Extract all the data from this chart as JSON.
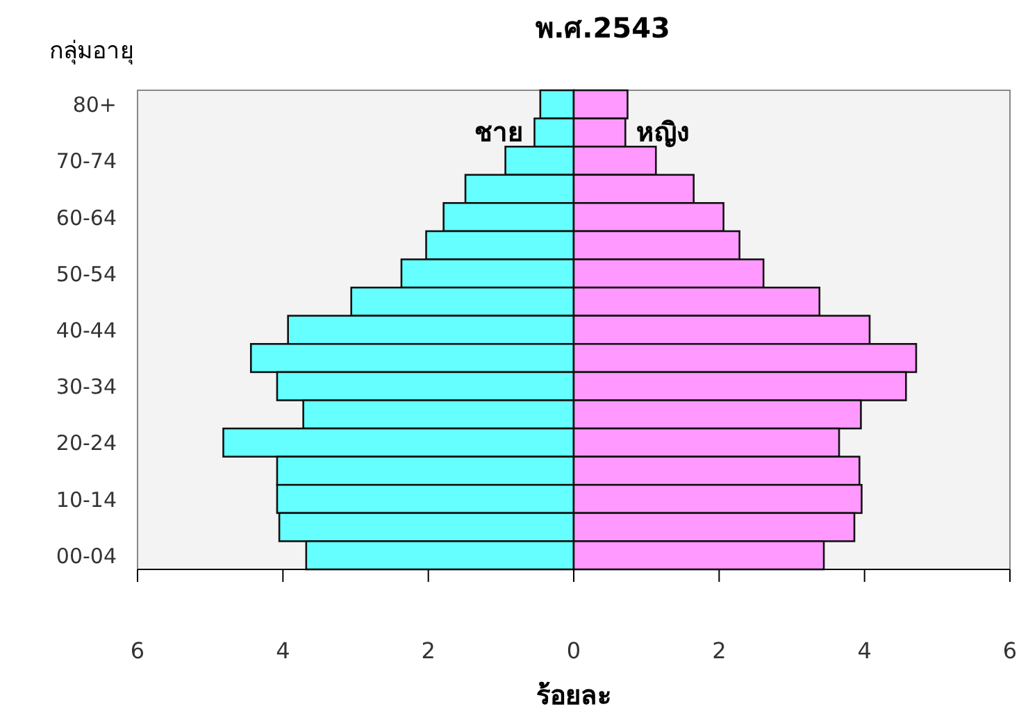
{
  "chart_data": {
    "type": "bar",
    "orientation": "horizontal",
    "title": "พ.ศ.2543",
    "ylabel": "กลุ่มอายุ",
    "xlabel": "ร้อยละ",
    "categories": [
      "80+",
      null,
      "70-74",
      null,
      "60-64",
      null,
      "50-54",
      null,
      "40-44",
      null,
      "30-34",
      null,
      "20-24",
      null,
      "10-14",
      null,
      "00-04"
    ],
    "series": [
      {
        "name": "ชาย",
        "color": "#66ffff",
        "values": [
          -0.46,
          -0.54,
          -0.94,
          -1.49,
          -1.79,
          -2.03,
          -2.37,
          -3.06,
          -3.93,
          -4.44,
          -4.08,
          -3.72,
          -4.82,
          -4.08,
          -4.08,
          -4.05,
          -3.68
        ]
      },
      {
        "name": "หญิง",
        "color": "#ff99ff",
        "values": [
          0.74,
          0.71,
          1.13,
          1.65,
          2.06,
          2.28,
          2.61,
          3.38,
          4.07,
          4.71,
          4.57,
          3.95,
          3.65,
          3.93,
          3.96,
          3.86,
          3.44
        ]
      }
    ],
    "xlim": [
      -6,
      6
    ],
    "xticks": [
      {
        "value": -6,
        "label": "6"
      },
      {
        "value": -4,
        "label": "4"
      },
      {
        "value": -2,
        "label": "2"
      },
      0,
      2,
      4,
      6
    ],
    "stacked": true,
    "grid": false,
    "legend": false
  }
}
